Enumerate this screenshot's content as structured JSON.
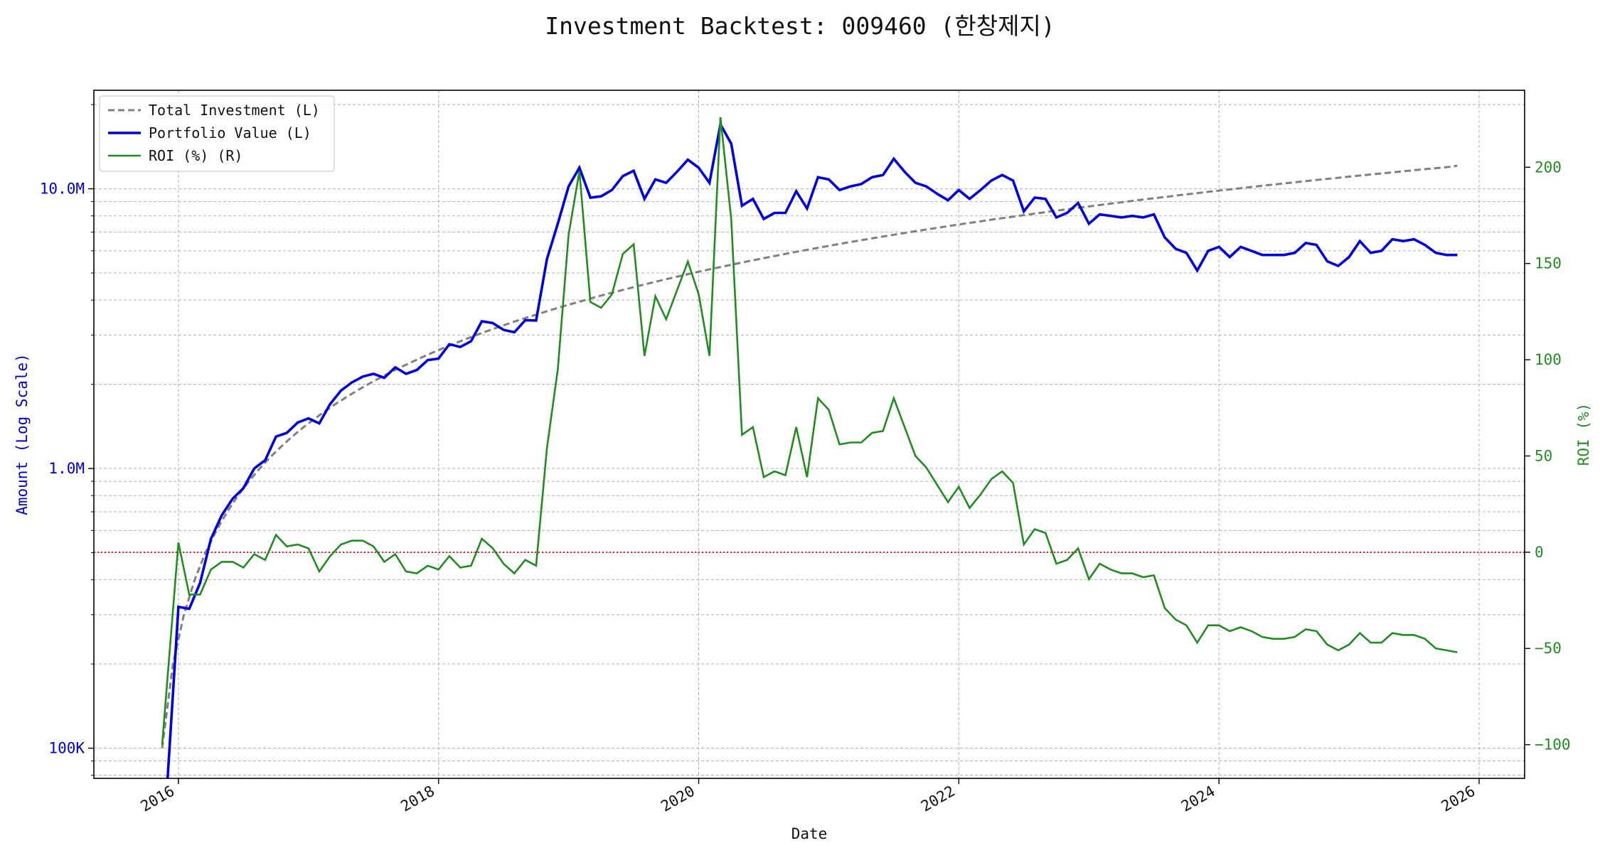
{
  "chart_data": {
    "type": "line",
    "title": "Investment Backtest: 009460 (한창제지)",
    "xlabel": "Date",
    "ylabel_left": "Amount (Log Scale)",
    "ylabel_right": "ROI (%)",
    "x_ticks": [
      "2016",
      "2018",
      "2020",
      "2022",
      "2024",
      "2026"
    ],
    "y_left_ticks": [
      {
        "value": 100000,
        "label": "100K"
      },
      {
        "value": 1000000,
        "label": "1.0M"
      },
      {
        "value": 10000000,
        "label": "10.0M"
      }
    ],
    "y_right_ticks": [
      {
        "value": -100,
        "label": "−100"
      },
      {
        "value": -50,
        "label": "−50"
      },
      {
        "value": 0,
        "label": "0"
      },
      {
        "value": 50,
        "label": "50"
      },
      {
        "value": 100,
        "label": "100"
      },
      {
        "value": 150,
        "label": "150"
      },
      {
        "value": 200,
        "label": "200"
      }
    ],
    "x_range": [
      2015.35,
      2026.35
    ],
    "y_left_range_log": [
      78000,
      22500000
    ],
    "y_right_range": [
      -117.5,
      240
    ],
    "log_scale_left": true,
    "grid": true,
    "legend_position": "upper-left",
    "zero_reference_line": 0,
    "colors": {
      "investment": "#808080",
      "portfolio": "#0000dd",
      "roi": "#228b22",
      "zero_line": "#dd0000",
      "left_axis": "#0000cc",
      "right_axis": "#228b22"
    },
    "series": [
      {
        "name": "Total Investment (L)",
        "style": "dashed",
        "dates": [
          2015.875,
          2015.958,
          2016.042,
          2016.125,
          2016.208,
          2016.292,
          2016.375,
          2016.458,
          2016.542,
          2016.625,
          2016.708,
          2016.792,
          2016.875,
          2016.958,
          2017.042,
          2017.125,
          2017.208,
          2017.292,
          2017.375,
          2017.458,
          2017.542,
          2017.625,
          2017.708,
          2017.792,
          2017.875,
          2017.958,
          2018.042,
          2018.125,
          2018.208,
          2018.292,
          2018.375,
          2018.458,
          2018.542,
          2018.625,
          2018.708,
          2018.792,
          2018.875,
          2018.958,
          2019.042,
          2019.125,
          2019.208,
          2019.292,
          2019.375,
          2019.458,
          2019.542,
          2019.625,
          2019.708,
          2019.792,
          2019.875,
          2019.958,
          2020.042,
          2020.125,
          2020.208,
          2020.292,
          2020.375,
          2020.458,
          2020.542,
          2020.625,
          2020.708,
          2020.792,
          2020.875,
          2020.958,
          2021.042,
          2021.125,
          2021.208,
          2021.292,
          2021.375,
          2021.458,
          2021.542,
          2021.625,
          2021.708,
          2021.792,
          2021.875,
          2021.958,
          2022.042,
          2022.125,
          2022.208,
          2022.292,
          2022.375,
          2022.458,
          2022.542,
          2022.625,
          2022.708,
          2022.792,
          2022.875,
          2022.958,
          2023.042,
          2023.125,
          2023.208,
          2023.292,
          2023.375,
          2023.458,
          2023.542,
          2023.625,
          2023.708,
          2023.792,
          2023.875,
          2023.958,
          2024.042,
          2024.125,
          2024.208,
          2024.292,
          2024.375,
          2024.458,
          2024.542,
          2024.625,
          2024.708,
          2024.792,
          2024.875,
          2024.958,
          2025.042,
          2025.125,
          2025.208,
          2025.292,
          2025.375,
          2025.458,
          2025.542,
          2025.625,
          2025.708,
          2025.792,
          2025.833
        ],
        "values": [
          100000,
          200000,
          300000,
          400000,
          500000,
          600000,
          700000,
          800000,
          900000,
          1000000,
          1100000,
          1200000,
          1300000,
          1400000,
          1500000,
          1600000,
          1700000,
          1800000,
          1900000,
          2000000,
          2100000,
          2200000,
          2300000,
          2400000,
          2500000,
          2600000,
          2700000,
          2800000,
          2900000,
          3000000,
          3100000,
          3200000,
          3300000,
          3400000,
          3500000,
          3600000,
          3700000,
          3800000,
          3900000,
          4000000,
          4100000,
          4200000,
          4300000,
          4400000,
          4500000,
          4600000,
          4700000,
          4800000,
          4900000,
          5000000,
          5100000,
          5200000,
          5300000,
          5400000,
          5500000,
          5600000,
          5700000,
          5800000,
          5900000,
          6000000,
          6100000,
          6200000,
          6300000,
          6400000,
          6500000,
          6600000,
          6700000,
          6800000,
          6900000,
          7000000,
          7100000,
          7200000,
          7300000,
          7400000,
          7500000,
          7600000,
          7700000,
          7800000,
          7900000,
          8000000,
          8100000,
          8200000,
          8300000,
          8400000,
          8500000,
          8600000,
          8700000,
          8800000,
          8900000,
          9000000,
          9100000,
          9200000,
          9300000,
          9400000,
          9500000,
          9600000,
          9700000,
          9800000,
          9900000,
          10000000,
          10100000,
          10200000,
          10300000,
          10400000,
          10500000,
          10600000,
          10700000,
          10800000,
          10900000,
          11000000,
          11100000,
          11200000,
          11300000,
          11400000,
          11500000,
          11600000,
          11700000,
          11800000,
          11900000,
          12000000,
          12100000
        ]
      },
      {
        "name": "Portfolio Value (L)",
        "style": "solid",
        "dates": [
          2015.917,
          2016.0,
          2016.083,
          2016.167,
          2016.25,
          2016.333,
          2016.417,
          2016.5,
          2016.583,
          2016.667,
          2016.75,
          2016.833,
          2016.917,
          2017.0,
          2017.083,
          2017.167,
          2017.25,
          2017.333,
          2017.417,
          2017.5,
          2017.583,
          2017.667,
          2017.75,
          2017.833,
          2017.917,
          2018.0,
          2018.083,
          2018.167,
          2018.25,
          2018.333,
          2018.417,
          2018.5,
          2018.583,
          2018.667,
          2018.75,
          2018.833,
          2018.917,
          2019.0,
          2019.083,
          2019.167,
          2019.25,
          2019.333,
          2019.417,
          2019.5,
          2019.583,
          2019.667,
          2019.75,
          2019.833,
          2019.917,
          2020.0,
          2020.083,
          2020.167,
          2020.25,
          2020.333,
          2020.417,
          2020.5,
          2020.583,
          2020.667,
          2020.75,
          2020.833,
          2020.917,
          2021.0,
          2021.083,
          2021.167,
          2021.25,
          2021.333,
          2021.417,
          2021.5,
          2021.583,
          2021.667,
          2021.75,
          2021.833,
          2021.917,
          2022.0,
          2022.083,
          2022.167,
          2022.25,
          2022.333,
          2022.417,
          2022.5,
          2022.583,
          2022.667,
          2022.75,
          2022.833,
          2022.917,
          2023.0,
          2023.083,
          2023.167,
          2023.25,
          2023.333,
          2023.417,
          2023.5,
          2023.583,
          2023.667,
          2023.75,
          2023.833,
          2023.917,
          2024.0,
          2024.083,
          2024.167,
          2024.25,
          2024.333,
          2024.417,
          2024.5,
          2024.583,
          2024.667,
          2024.75,
          2024.833,
          2024.917,
          2025.0,
          2025.083,
          2025.167,
          2025.25,
          2025.333,
          2025.417,
          2025.5,
          2025.583,
          2025.667,
          2025.75,
          2025.833
        ],
        "values": [
          70000,
          320000,
          315000,
          390000,
          560000,
          680000,
          780000,
          850000,
          1000000,
          1070000,
          1300000,
          1340000,
          1460000,
          1510000,
          1450000,
          1700000,
          1900000,
          2030000,
          2130000,
          2180000,
          2110000,
          2300000,
          2180000,
          2250000,
          2440000,
          2470000,
          2780000,
          2720000,
          2850000,
          3360000,
          3310000,
          3130000,
          3070000,
          3390000,
          3380000,
          5600000,
          7500000,
          10200000,
          11900000,
          9300000,
          9400000,
          9900000,
          11100000,
          11600000,
          9200000,
          10800000,
          10500000,
          11500000,
          12700000,
          11900000,
          10500000,
          17000000,
          14500000,
          8700000,
          9200000,
          7800000,
          8200000,
          8200000,
          9800000,
          8500000,
          11000000,
          10800000,
          9900000,
          10200000,
          10400000,
          11000000,
          11200000,
          12800000,
          11500000,
          10500000,
          10200000,
          9600000,
          9100000,
          9900000,
          9200000,
          9900000,
          10700000,
          11200000,
          10700000,
          8300000,
          9300000,
          9200000,
          7900000,
          8200000,
          8900000,
          7500000,
          8100000,
          8000000,
          7900000,
          8000000,
          7900000,
          8100000,
          6700000,
          6100000,
          5900000,
          5100000,
          6000000,
          6200000,
          5700000,
          6200000,
          6000000,
          5800000,
          5800000,
          5800000,
          5900000,
          6400000,
          6300000,
          5500000,
          5300000,
          5700000,
          6500000,
          5900000,
          6000000,
          6600000,
          6500000,
          6600000,
          6300000,
          5900000,
          5800000,
          5800000
        ]
      },
      {
        "name": "ROI (%) (R)",
        "style": "solid",
        "dates": [
          2015.875,
          2016.0,
          2016.083,
          2016.167,
          2016.25,
          2016.333,
          2016.417,
          2016.5,
          2016.583,
          2016.667,
          2016.75,
          2016.833,
          2016.917,
          2017.0,
          2017.083,
          2017.167,
          2017.25,
          2017.333,
          2017.417,
          2017.5,
          2017.583,
          2017.667,
          2017.75,
          2017.833,
          2017.917,
          2018.0,
          2018.083,
          2018.167,
          2018.25,
          2018.333,
          2018.417,
          2018.5,
          2018.583,
          2018.667,
          2018.75,
          2018.833,
          2018.917,
          2019.0,
          2019.083,
          2019.167,
          2019.25,
          2019.333,
          2019.417,
          2019.5,
          2019.583,
          2019.667,
          2019.75,
          2019.833,
          2019.917,
          2020.0,
          2020.083,
          2020.167,
          2020.25,
          2020.333,
          2020.417,
          2020.5,
          2020.583,
          2020.667,
          2020.75,
          2020.833,
          2020.917,
          2021.0,
          2021.083,
          2021.167,
          2021.25,
          2021.333,
          2021.417,
          2021.5,
          2021.583,
          2021.667,
          2021.75,
          2021.833,
          2021.917,
          2022.0,
          2022.083,
          2022.167,
          2022.25,
          2022.333,
          2022.417,
          2022.5,
          2022.583,
          2022.667,
          2022.75,
          2022.833,
          2022.917,
          2023.0,
          2023.083,
          2023.167,
          2023.25,
          2023.333,
          2023.417,
          2023.5,
          2023.583,
          2023.667,
          2023.75,
          2023.833,
          2023.917,
          2024.0,
          2024.083,
          2024.167,
          2024.25,
          2024.333,
          2024.417,
          2024.5,
          2024.583,
          2024.667,
          2024.75,
          2024.833,
          2024.917,
          2025.0,
          2025.083,
          2025.167,
          2025.25,
          2025.333,
          2025.417,
          2025.5,
          2025.583,
          2025.667,
          2025.75,
          2025.833
        ],
        "values": [
          -100,
          5,
          -22,
          -22,
          -9,
          -5,
          -5,
          -8,
          -1,
          -4,
          9,
          3,
          4,
          2,
          -10,
          -2,
          4,
          6,
          6,
          3,
          -5,
          -1,
          -10,
          -11,
          -7,
          -9,
          -2,
          -8,
          -7,
          7,
          2,
          -6,
          -11,
          -4,
          -7,
          54,
          95,
          165,
          198,
          130,
          127,
          134,
          155,
          160,
          102,
          133,
          121,
          136,
          151,
          134,
          102,
          226,
          173,
          61,
          65,
          39,
          42,
          40,
          65,
          39,
          80,
          74,
          56,
          57,
          57,
          62,
          63,
          80,
          65,
          50,
          44,
          35,
          26,
          34,
          23,
          30,
          38,
          42,
          36,
          4,
          12,
          10,
          -6,
          -4,
          2,
          -14,
          -6,
          -9,
          -11,
          -11,
          -13,
          -12,
          -29,
          -35,
          -38,
          -47,
          -38,
          -38,
          -41,
          -39,
          -41,
          -44,
          -45,
          -45,
          -44,
          -40,
          -41,
          -48,
          -51,
          -48,
          -42,
          -47,
          -47,
          -42,
          -43,
          -43,
          -45,
          -50,
          -51,
          -52
        ]
      }
    ]
  }
}
